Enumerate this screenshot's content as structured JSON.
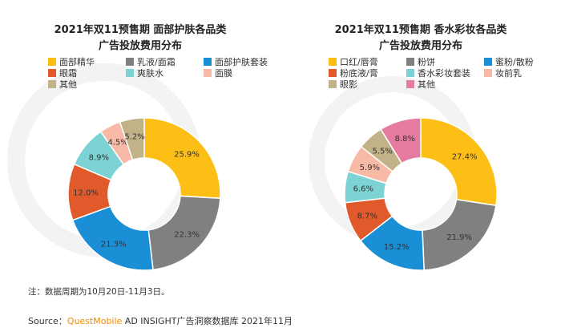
{
  "colors": {
    "yellow": "#fdbf15",
    "gray": "#808080",
    "blue": "#1a8fd6",
    "red": "#e05a2b",
    "teal": "#7dd3d3",
    "pink": "#f8b9a6",
    "olive": "#c2b287",
    "magenta": "#e57c9f",
    "brand_orange": "#f08c00"
  },
  "chart_data": [
    {
      "type": "pie",
      "title_line1": "2021年双11预售期 面部护肤各品类",
      "title_line2": "广告投放费用分布",
      "categories": [
        "面部精华",
        "乳液/面霜",
        "面部护肤套装",
        "眼霜",
        "爽肤水",
        "面膜",
        "其他"
      ],
      "values": [
        25.9,
        22.3,
        21.3,
        12.0,
        8.9,
        4.5,
        5.2
      ],
      "labels": [
        "25.9%",
        "22.3%",
        "21.3%",
        "12.0%",
        "8.9%",
        "4.5%",
        "5.2%"
      ],
      "colors": [
        "#fdbf15",
        "#808080",
        "#1a8fd6",
        "#e05a2b",
        "#7dd3d3",
        "#f8b9a6",
        "#c2b287"
      ]
    },
    {
      "type": "pie",
      "title_line1": "2021年双11预售期 香水彩妆各品类",
      "title_line2": "广告投放费用分布",
      "categories": [
        "口红/唇膏",
        "粉饼",
        "蜜粉/散粉",
        "粉底液/膏",
        "香水彩妆套装",
        "妆前乳",
        "眼影",
        "其他"
      ],
      "values": [
        27.4,
        21.9,
        15.2,
        8.7,
        6.6,
        5.9,
        5.5,
        8.8
      ],
      "labels": [
        "27.4%",
        "21.9%",
        "15.2%",
        "8.7%",
        "6.6%",
        "5.9%",
        "5.5%",
        "8.8%"
      ],
      "colors": [
        "#fdbf15",
        "#808080",
        "#1a8fd6",
        "#e05a2b",
        "#7dd3d3",
        "#f8b9a6",
        "#c2b287",
        "#e57c9f"
      ]
    }
  ],
  "footer": {
    "note": "注：数据周期为10月20日-11月3日。",
    "source_prefix": "Source：",
    "source_brand": "QuestMobile",
    "source_rest": " AD INSIGHT广告洞察数据库 2021年11月"
  }
}
